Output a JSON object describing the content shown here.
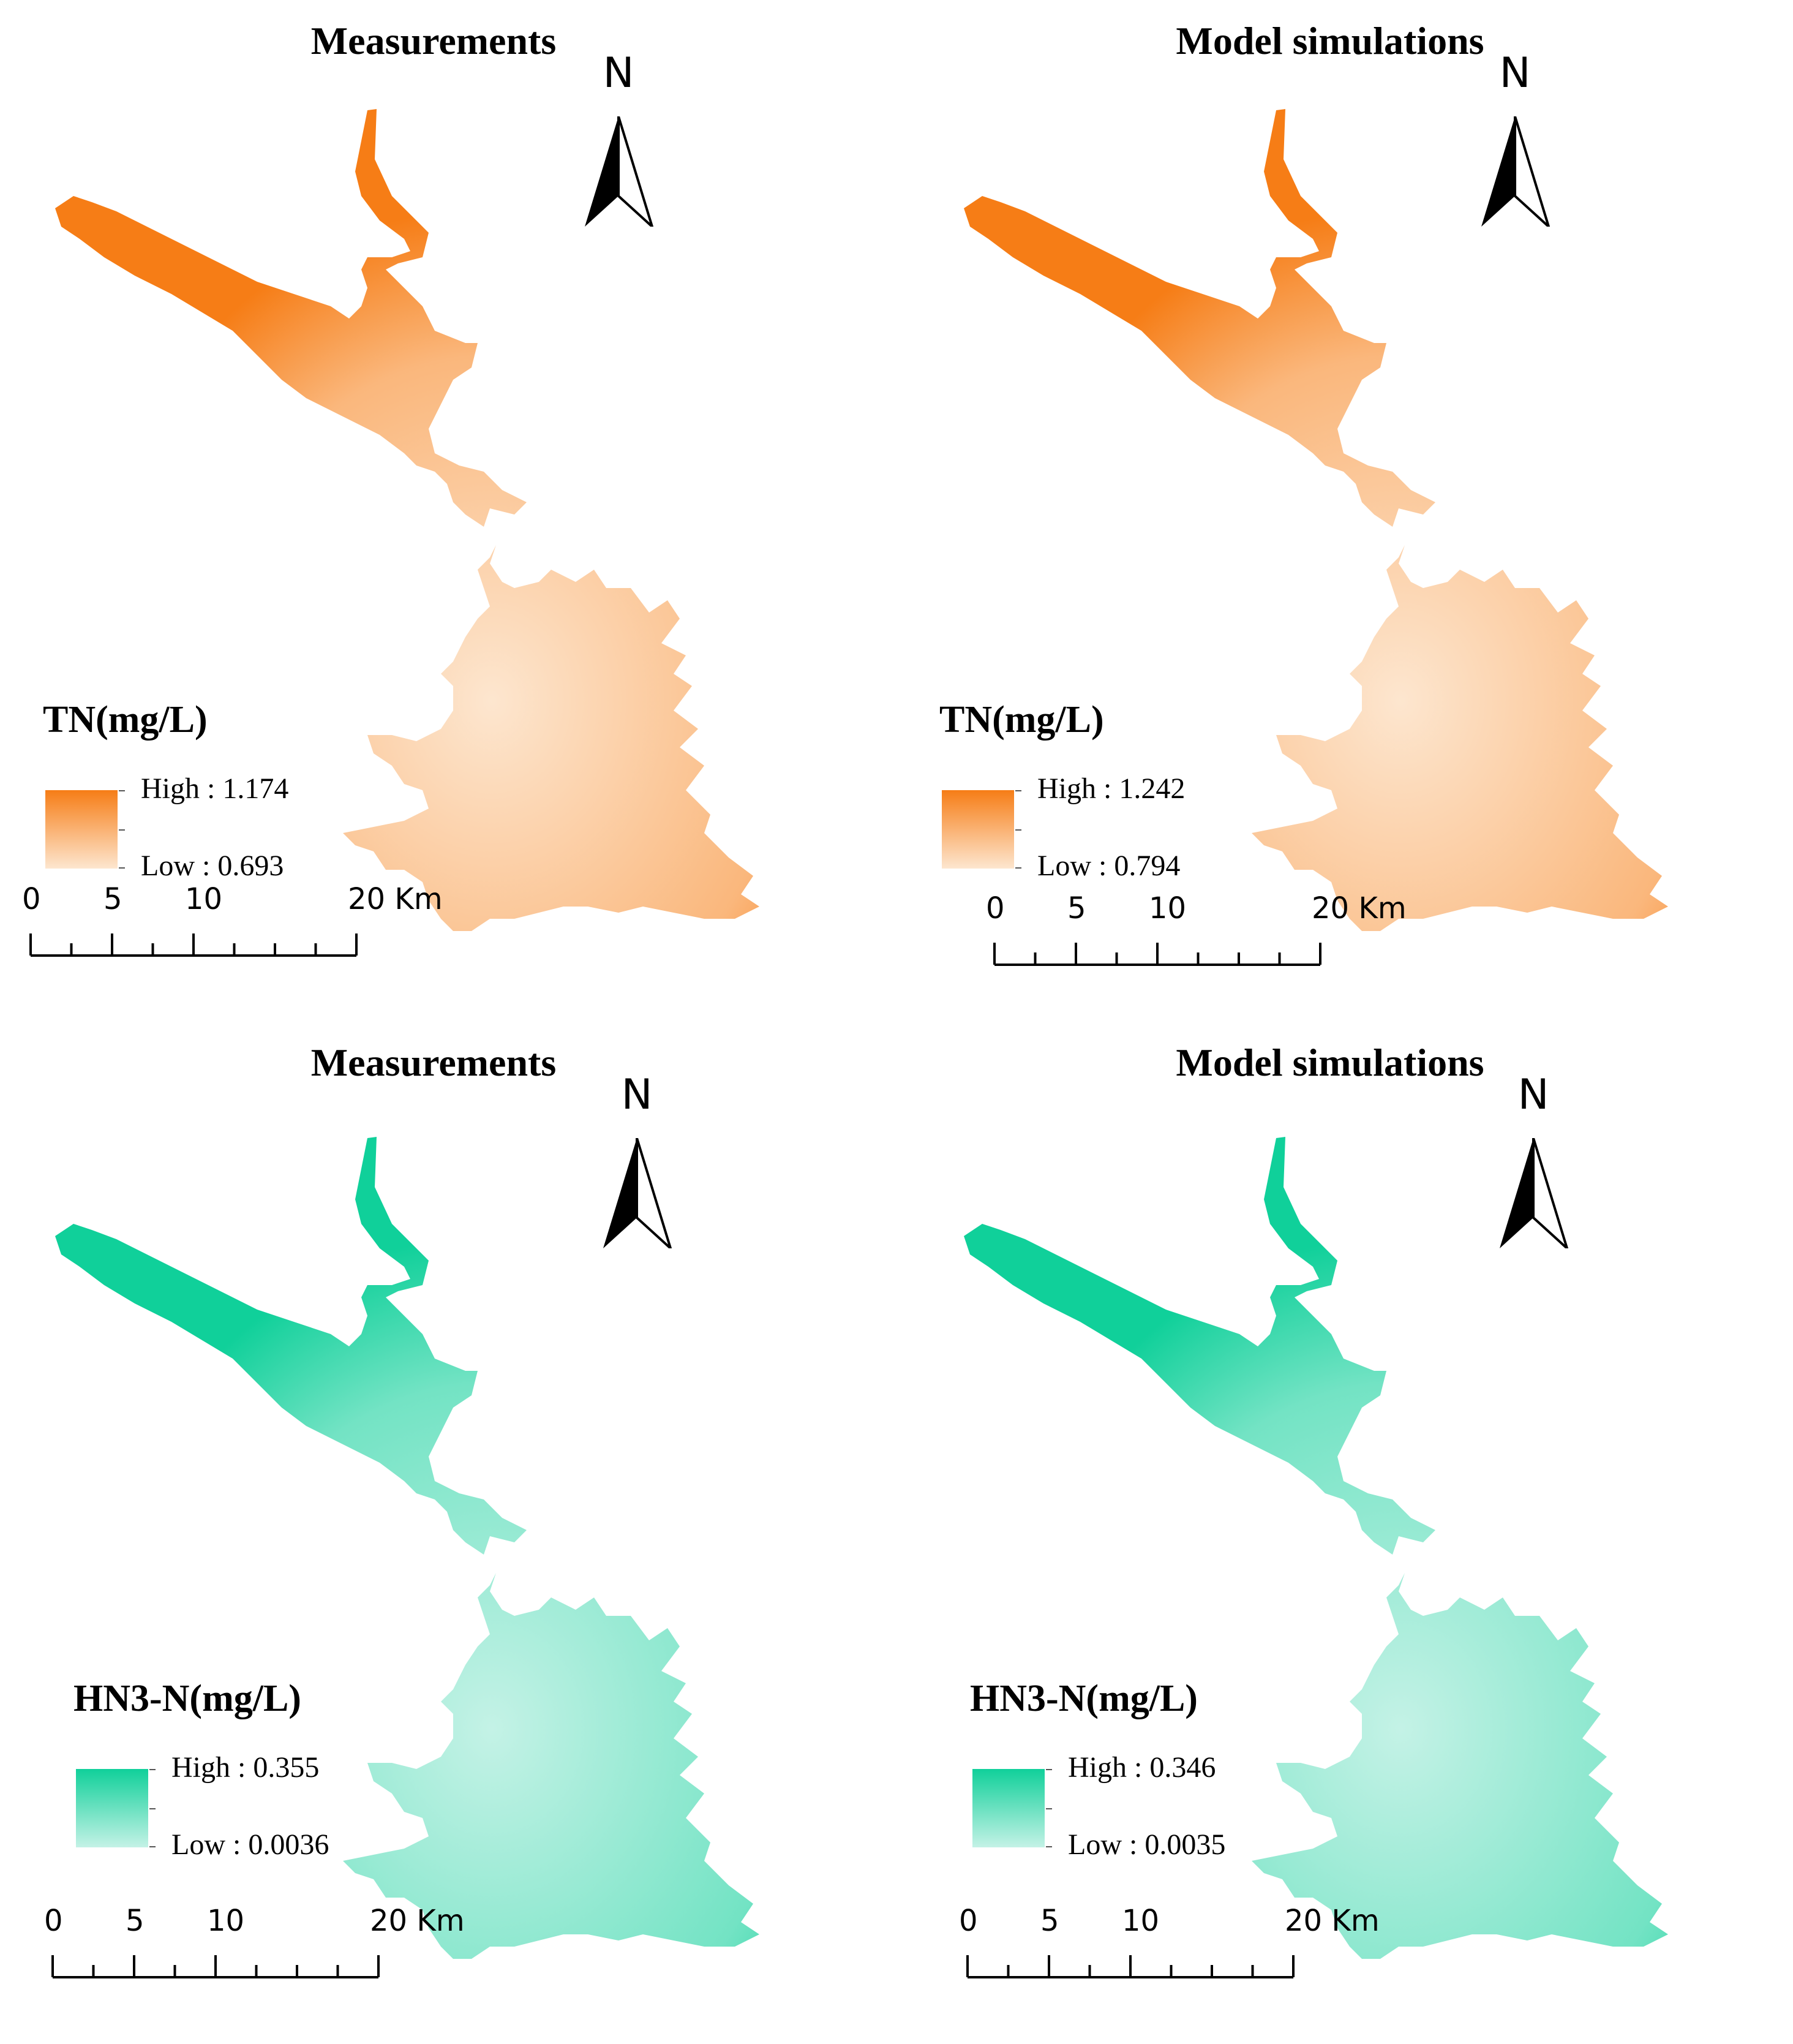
{
  "panels": [
    {
      "title": "Measurements",
      "legend_title": "TN(mg/L)",
      "high_label": "High : 1.174",
      "low_label": "Low : 0.693",
      "color_high": "#f67d16",
      "color_low": "#fde6cf",
      "north_label": "N",
      "scale_labels": [
        "0",
        "5",
        "10",
        "20 Km"
      ]
    },
    {
      "title": "Model simulations",
      "legend_title": "TN(mg/L)",
      "high_label": "High : 1.242",
      "low_label": "Low : 0.794",
      "color_high": "#f67d16",
      "color_low": "#fde6cf",
      "north_label": "N",
      "scale_labels": [
        "0",
        "5",
        "10",
        "20 Km"
      ]
    },
    {
      "title": "Measurements",
      "legend_title": "HN3-N(mg/L)",
      "high_label": "High : 0.355",
      "low_label": "Low : 0.0036",
      "color_high": "#10d09a",
      "color_low": "#c4f2e6",
      "north_label": "N",
      "scale_labels": [
        "0",
        "5",
        "10",
        "20 Km"
      ]
    },
    {
      "title": "Model simulations",
      "legend_title": "HN3-N(mg/L)",
      "high_label": "High : 0.346",
      "low_label": "Low : 0.0035",
      "color_high": "#10d09a",
      "color_low": "#c4f2e6",
      "north_label": "N",
      "scale_labels": [
        "0",
        "5",
        "10",
        "20 Km"
      ]
    }
  ]
}
